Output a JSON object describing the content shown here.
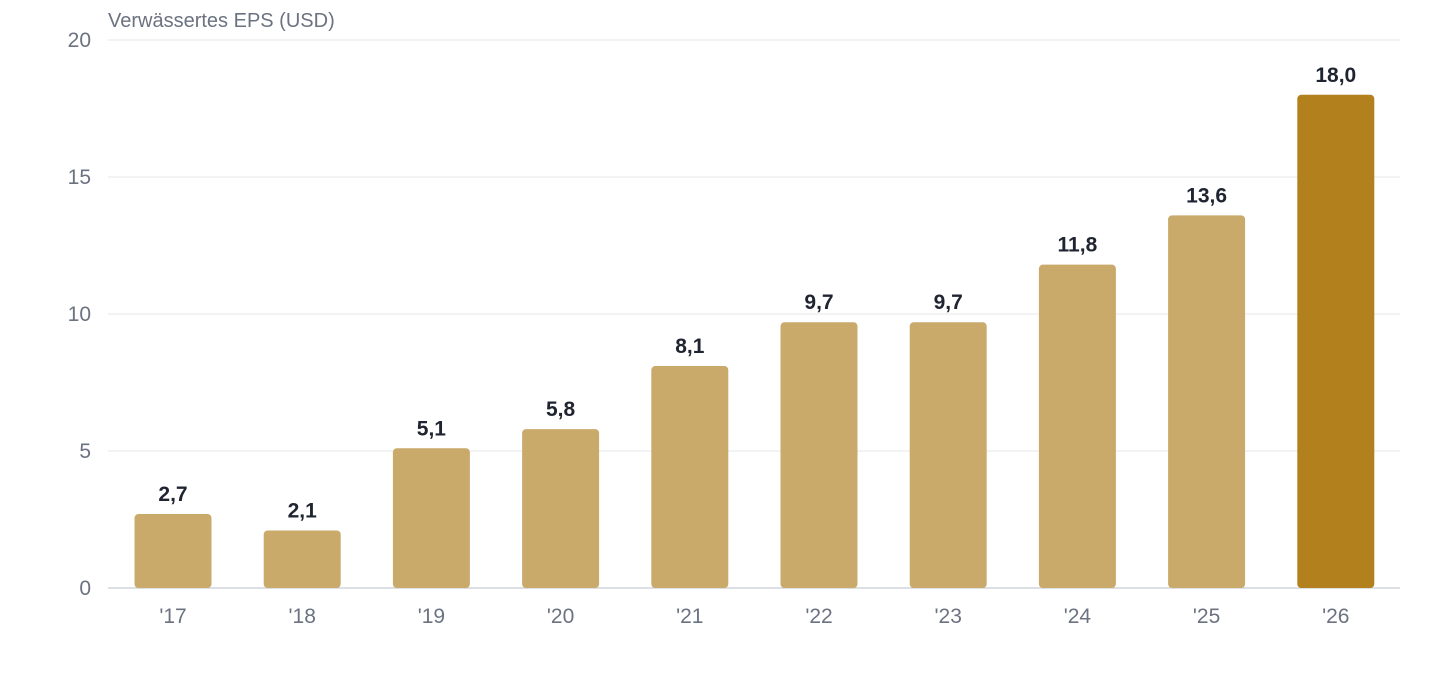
{
  "chart_data": {
    "type": "bar",
    "title": "",
    "ylabel": "Verwässertes EPS (USD)",
    "xlabel": "",
    "categories": [
      "'17",
      "'18",
      "'19",
      "'20",
      "'21",
      "'22",
      "'23",
      "'24",
      "'25",
      "'26"
    ],
    "values": [
      2.7,
      2.1,
      5.1,
      5.8,
      8.1,
      9.7,
      9.7,
      11.8,
      13.6,
      18.0
    ],
    "value_labels": [
      "2,7",
      "2,1",
      "5,1",
      "5,8",
      "8,1",
      "9,7",
      "9,7",
      "11,8",
      "13,6",
      "18,0"
    ],
    "yticks": [
      0,
      5,
      10,
      15,
      20
    ],
    "ylim": [
      0,
      20
    ],
    "grid": true,
    "legend": "none",
    "highlight_index": 9,
    "colors": {
      "bar": "#c9aa6a",
      "bar_highlight": "#b3801e",
      "grid": "#e5e7eb",
      "axis": "#d1d5db",
      "tick_text": "#6b7280",
      "value_text": "#1f2430"
    }
  }
}
